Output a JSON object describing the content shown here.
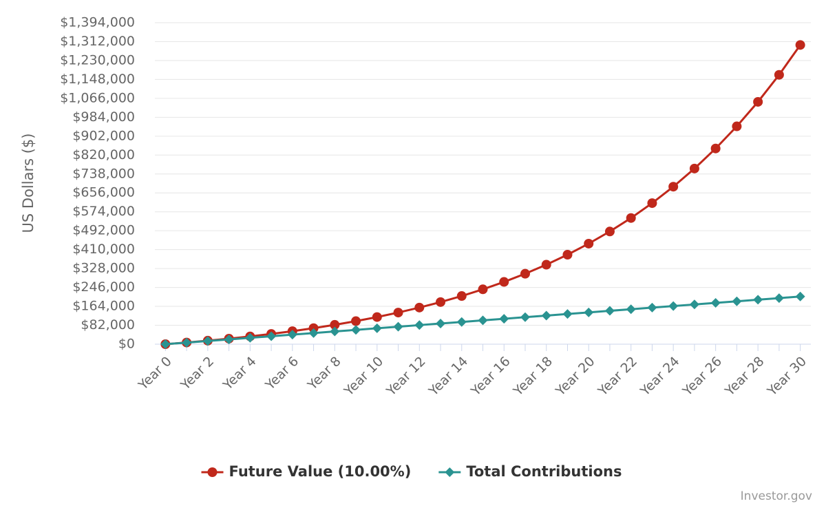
{
  "chart_data": {
    "type": "line",
    "y_label": "US Dollars ($)",
    "credit": "Investor.gov",
    "categories": [
      "Year 0",
      null,
      "Year 2",
      null,
      "Year 4",
      null,
      "Year 6",
      null,
      "Year 8",
      null,
      "Year 10",
      null,
      "Year 12",
      null,
      "Year 14",
      null,
      "Year 16",
      null,
      "Year 18",
      null,
      "Year 20",
      null,
      "Year 22",
      null,
      "Year 24",
      null,
      "Year 26",
      null,
      "Year 28",
      null,
      "Year 30"
    ],
    "series": [
      {
        "name": "Future Value (10.00%)",
        "color": "#c0281b",
        "marker": "circle",
        "values": [
          0,
          7213,
          15180,
          23983,
          33707,
          44450,
          56318,
          69426,
          83906,
          99903,
          117577,
          137106,
          158675,
          182507,
          208835,
          237914,
          270029,
          305518,
          344722,
          388033,
          435877,
          488736,
          547123,
          611625,
          682882,
          761604,
          848568,
          944638,
          1050768,
          1168006,
          1297484
        ]
      },
      {
        "name": "Total Contributions",
        "color": "#2a9391",
        "marker": "diamond",
        "values": [
          0,
          6888,
          13776,
          20664,
          27552,
          34440,
          41328,
          48216,
          55104,
          61992,
          68880,
          75768,
          82656,
          89544,
          96432,
          103320,
          110208,
          117096,
          123984,
          130872,
          137760,
          144648,
          151536,
          158424,
          165312,
          172200,
          179088,
          185976,
          192864,
          199752,
          206640
        ]
      }
    ],
    "ylim": [
      0,
      1394000
    ],
    "yticks": [
      {
        "value": 0,
        "label": "$0"
      },
      {
        "value": 82000,
        "label": "$82,000"
      },
      {
        "value": 164000,
        "label": "$164,000"
      },
      {
        "value": 246000,
        "label": "$246,000"
      },
      {
        "value": 328000,
        "label": "$328,000"
      },
      {
        "value": 410000,
        "label": "$410,000"
      },
      {
        "value": 492000,
        "label": "$492,000"
      },
      {
        "value": 574000,
        "label": "$574,000"
      },
      {
        "value": 656000,
        "label": "$656,000"
      },
      {
        "value": 738000,
        "label": "$738,000"
      },
      {
        "value": 820000,
        "label": "$820,000"
      },
      {
        "value": 902000,
        "label": "$902,000"
      },
      {
        "value": 984000,
        "label": "$984,000"
      },
      {
        "value": 1066000,
        "label": "$1,066,000"
      },
      {
        "value": 1148000,
        "label": "$1,148,000"
      },
      {
        "value": 1230000,
        "label": "$1,230,000"
      },
      {
        "value": 1312000,
        "label": "$1,312,000"
      },
      {
        "value": 1394000,
        "label": "$1,394,000"
      }
    ],
    "grid": true
  }
}
